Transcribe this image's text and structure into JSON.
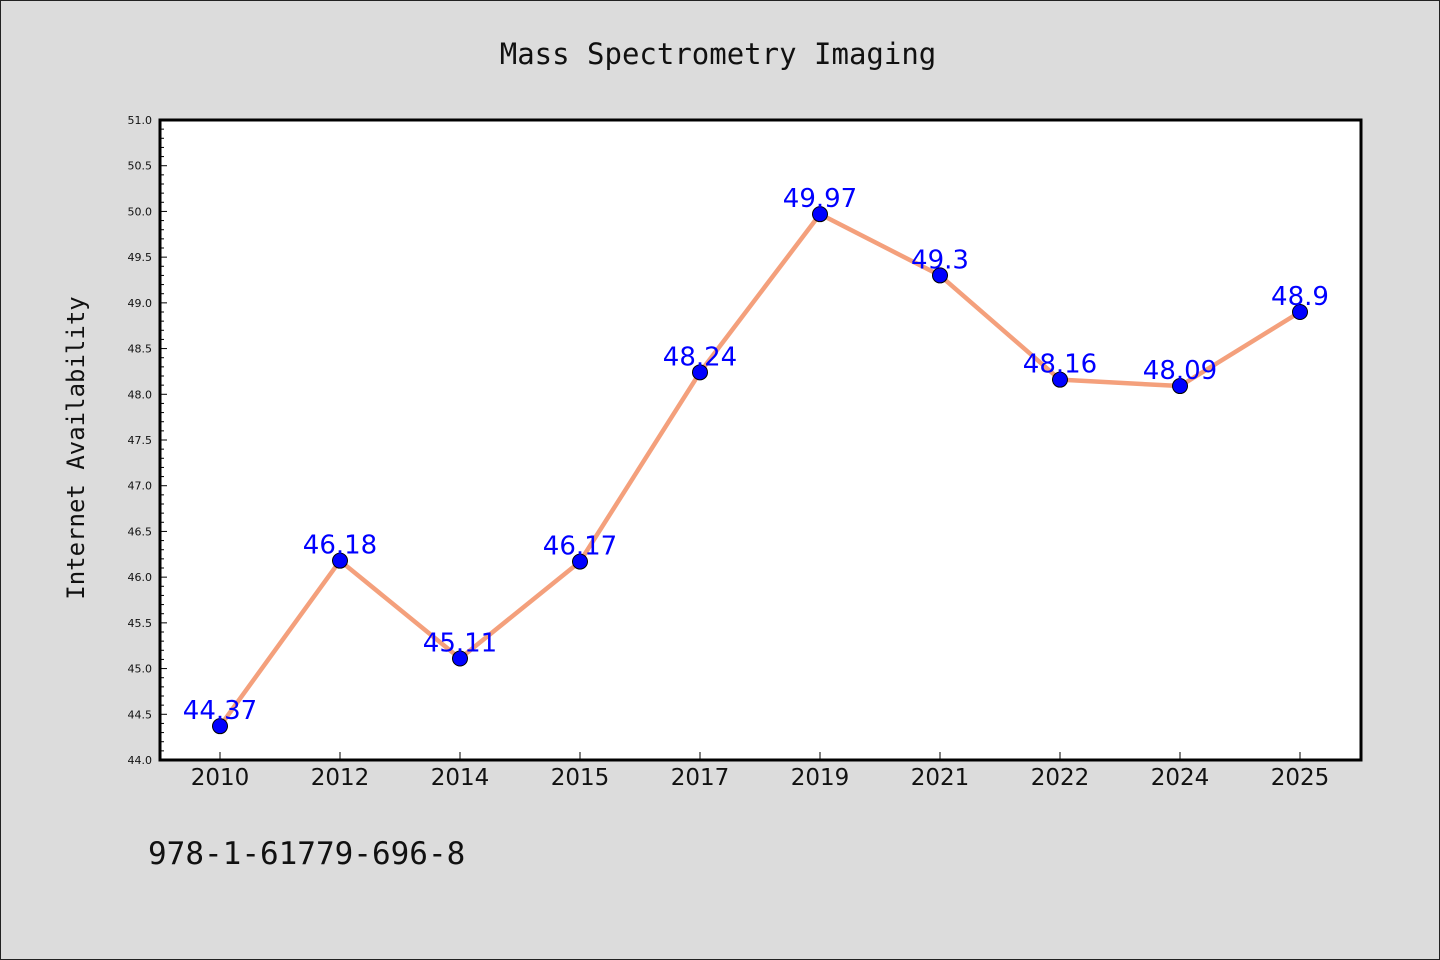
{
  "chart_data": {
    "type": "line",
    "title": "Mass Spectrometry Imaging",
    "xlabel": "",
    "ylabel": "Internet Availability",
    "categories": [
      "2010",
      "2012",
      "2014",
      "2015",
      "2017",
      "2019",
      "2021",
      "2022",
      "2024",
      "2025"
    ],
    "series": [
      {
        "values": [
          44.37,
          46.18,
          45.11,
          46.17,
          48.24,
          49.97,
          49.3,
          48.16,
          48.09,
          48.9
        ],
        "labels": [
          "44.37",
          "46.18",
          "45.11",
          "46.17",
          "48.24",
          "49.97",
          "49.3",
          "48.16",
          "48.09",
          "48.9"
        ],
        "line_color": "#f4a07c",
        "marker_color": "#0000ff"
      }
    ],
    "ylim": [
      44.0,
      51.0
    ],
    "yticks": [
      "44.0",
      "44.5",
      "45.0",
      "45.5",
      "46.0",
      "46.5",
      "47.0",
      "47.5",
      "48.0",
      "48.5",
      "49.0",
      "49.5",
      "50.0",
      "50.5",
      "51.0"
    ],
    "grid": false,
    "legend": "none"
  },
  "footer": {
    "isbn": "978-1-61779-696-8"
  }
}
